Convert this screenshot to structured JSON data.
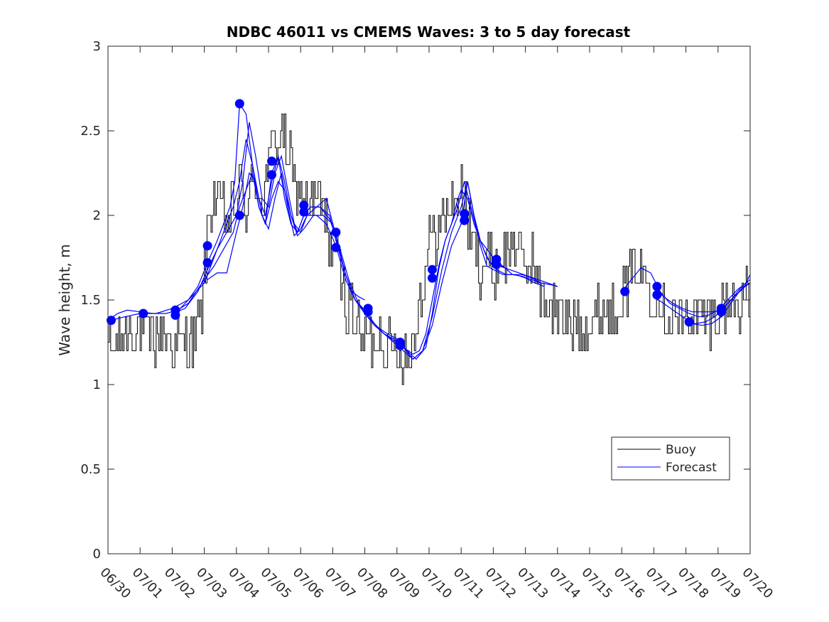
{
  "chart_data": {
    "type": "line",
    "title": "NDBC 46011 vs CMEMS Waves: 3 to 5 day forecast",
    "xlabel": "",
    "ylabel": "Wave height, m",
    "xlim": [
      0,
      20
    ],
    "ylim": [
      0,
      3
    ],
    "x_tick_labels": [
      "06/30",
      "07/01",
      "07/02",
      "07/03",
      "07/04",
      "07/05",
      "07/06",
      "07/07",
      "07/08",
      "07/09",
      "07/10",
      "07/11",
      "07/12",
      "07/13",
      "07/14",
      "07/15",
      "07/16",
      "07/17",
      "07/18",
      "07/19",
      "07/20"
    ],
    "y_ticks": [
      0,
      0.5,
      1,
      1.5,
      2,
      2.5,
      3
    ],
    "y_tick_labels": [
      "0",
      "0.5",
      "1",
      "1.5",
      "2",
      "2.5",
      "3"
    ],
    "grid": false,
    "legend": {
      "placement": "lower-right",
      "entries": [
        "Buoy",
        "Forecast"
      ]
    },
    "colors": {
      "buoy": "#000000",
      "forecast": "#0000ff"
    },
    "buoy_anchors": [
      [
        0.0,
        1.25
      ],
      [
        0.2,
        1.2
      ],
      [
        0.5,
        1.3
      ],
      [
        0.8,
        1.35
      ],
      [
        1.0,
        1.3
      ],
      [
        1.3,
        1.25
      ],
      [
        1.6,
        1.3
      ],
      [
        1.9,
        1.3
      ],
      [
        2.1,
        1.2
      ],
      [
        2.4,
        1.25
      ],
      [
        2.7,
        1.3
      ],
      [
        2.9,
        1.4
      ],
      [
        3.0,
        1.7
      ],
      [
        3.15,
        2.0
      ],
      [
        3.3,
        2.15
      ],
      [
        3.5,
        2.05
      ],
      [
        3.7,
        1.95
      ],
      [
        3.9,
        2.05
      ],
      [
        4.05,
        2.15
      ],
      [
        4.3,
        2.05
      ],
      [
        4.6,
        2.2
      ],
      [
        4.8,
        2.1
      ],
      [
        5.0,
        2.3
      ],
      [
        5.2,
        2.45
      ],
      [
        5.4,
        2.5
      ],
      [
        5.6,
        2.35
      ],
      [
        5.8,
        2.2
      ],
      [
        6.0,
        2.1
      ],
      [
        6.2,
        2.05
      ],
      [
        6.4,
        2.1
      ],
      [
        6.6,
        2.05
      ],
      [
        6.8,
        1.95
      ],
      [
        7.0,
        1.8
      ],
      [
        7.2,
        1.65
      ],
      [
        7.4,
        1.5
      ],
      [
        7.6,
        1.45
      ],
      [
        7.8,
        1.3
      ],
      [
        8.0,
        1.25
      ],
      [
        8.2,
        1.25
      ],
      [
        8.4,
        1.3
      ],
      [
        8.6,
        1.25
      ],
      [
        8.8,
        1.2
      ],
      [
        9.0,
        1.2
      ],
      [
        9.2,
        1.2
      ],
      [
        9.4,
        1.18
      ],
      [
        9.6,
        1.4
      ],
      [
        9.8,
        1.6
      ],
      [
        10.0,
        1.85
      ],
      [
        10.2,
        1.9
      ],
      [
        10.4,
        1.95
      ],
      [
        10.6,
        2.05
      ],
      [
        10.8,
        2.1
      ],
      [
        11.0,
        2.15
      ],
      [
        11.2,
        1.95
      ],
      [
        11.4,
        1.8
      ],
      [
        11.6,
        1.7
      ],
      [
        11.8,
        1.75
      ],
      [
        12.0,
        1.65
      ],
      [
        12.2,
        1.75
      ],
      [
        12.4,
        1.75
      ],
      [
        12.6,
        1.9
      ],
      [
        12.8,
        1.75
      ],
      [
        13.0,
        1.7
      ],
      [
        13.2,
        1.75
      ],
      [
        13.4,
        1.55
      ],
      [
        13.6,
        1.5
      ],
      [
        13.8,
        1.45
      ],
      [
        14.0,
        1.4
      ],
      [
        14.3,
        1.35
      ],
      [
        14.6,
        1.4
      ],
      [
        14.9,
        1.35
      ],
      [
        15.2,
        1.4
      ],
      [
        15.5,
        1.45
      ],
      [
        15.8,
        1.45
      ],
      [
        16.0,
        1.55
      ],
      [
        16.2,
        1.6
      ],
      [
        16.4,
        1.7
      ],
      [
        16.6,
        1.7
      ],
      [
        16.8,
        1.65
      ],
      [
        17.0,
        1.55
      ],
      [
        17.2,
        1.5
      ],
      [
        17.4,
        1.45
      ],
      [
        17.6,
        1.4
      ],
      [
        17.8,
        1.4
      ],
      [
        18.0,
        1.4
      ],
      [
        18.3,
        1.4
      ],
      [
        18.6,
        1.38
      ],
      [
        18.9,
        1.4
      ],
      [
        19.1,
        1.45
      ],
      [
        19.3,
        1.5
      ],
      [
        19.6,
        1.5
      ],
      [
        19.8,
        1.5
      ],
      [
        20.0,
        1.5
      ]
    ],
    "forecast_runs": [
      {
        "x": [
          0.0,
          0.3,
          0.6,
          1.0,
          1.4,
          1.8,
          2.2,
          2.5,
          2.8,
          3.1,
          3.4,
          3.6,
          3.8,
          3.95,
          4.1,
          4.3,
          4.5,
          4.7,
          4.9,
          5.1,
          5.3,
          5.5,
          5.7,
          5.9,
          6.1,
          6.3,
          6.6,
          6.9,
          7.1,
          7.4,
          7.7,
          8.0,
          8.3,
          8.6,
          8.9,
          9.2,
          9.5,
          9.7,
          9.9,
          10.1,
          10.3,
          10.5,
          10.7,
          10.9,
          11.0,
          11.2,
          11.4,
          11.6,
          11.8,
          12.0,
          12.3,
          12.6,
          12.9,
          13.2,
          13.5,
          13.8,
          14.0
        ],
        "y": [
          1.38,
          1.42,
          1.44,
          1.43,
          1.42,
          1.42,
          1.44,
          1.5,
          1.58,
          1.72,
          1.85,
          1.95,
          2.05,
          2.2,
          2.66,
          2.6,
          2.3,
          2.1,
          2.0,
          2.2,
          2.35,
          2.2,
          2.0,
          1.9,
          2.0,
          2.05,
          2.05,
          2.0,
          1.85,
          1.65,
          1.5,
          1.42,
          1.35,
          1.3,
          1.26,
          1.22,
          1.18,
          1.2,
          1.3,
          1.5,
          1.7,
          1.85,
          1.95,
          2.1,
          2.15,
          2.1,
          1.95,
          1.85,
          1.8,
          1.75,
          1.7,
          1.65,
          1.65,
          1.63,
          1.6,
          1.59,
          1.58
        ]
      },
      {
        "x": [
          0.1,
          0.5,
          1.0,
          1.5,
          2.0,
          2.5,
          3.0,
          3.3,
          3.6,
          3.9,
          4.1,
          4.3,
          4.5,
          4.7,
          4.9,
          5.1,
          5.3,
          5.5,
          5.7,
          5.9,
          6.1,
          6.3,
          6.6,
          6.9,
          7.2,
          7.5,
          7.8,
          8.1,
          8.4,
          8.7,
          9.0,
          9.3,
          9.6,
          9.9,
          10.1,
          10.3,
          10.5,
          10.7,
          10.9,
          11.1,
          11.3,
          11.5,
          11.7,
          11.9,
          12.1,
          12.4,
          12.7,
          13.0,
          13.3,
          13.6
        ],
        "y": [
          1.38,
          1.4,
          1.42,
          1.42,
          1.45,
          1.5,
          1.6,
          1.75,
          1.9,
          2.05,
          2.2,
          2.45,
          2.3,
          2.05,
          1.95,
          2.25,
          2.35,
          2.1,
          1.95,
          1.9,
          2.0,
          2.05,
          2.05,
          1.98,
          1.82,
          1.62,
          1.48,
          1.4,
          1.34,
          1.3,
          1.27,
          1.2,
          1.15,
          1.22,
          1.42,
          1.68,
          1.85,
          1.95,
          2.05,
          2.2,
          2.05,
          1.9,
          1.8,
          1.72,
          1.68,
          1.65,
          1.65,
          1.63,
          1.6,
          1.58
        ]
      },
      {
        "x": [
          2.0,
          2.4,
          2.8,
          3.1,
          3.4,
          3.7,
          4.0,
          4.2,
          4.4,
          4.6,
          4.8,
          5.0,
          5.2,
          5.4,
          5.6,
          5.8,
          6.0,
          6.2,
          6.5,
          6.8,
          7.1,
          7.4,
          7.7,
          8.0,
          8.3,
          8.6,
          8.9,
          9.2,
          9.5,
          9.8,
          10.1,
          10.4,
          10.7,
          11.0,
          11.2,
          11.4,
          11.6,
          11.8,
          12.0,
          12.3,
          12.6,
          12.9,
          13.2,
          13.5
        ],
        "y": [
          1.42,
          1.45,
          1.55,
          1.68,
          1.8,
          1.9,
          2.0,
          2.2,
          2.55,
          2.35,
          2.1,
          2.05,
          2.25,
          2.35,
          2.15,
          1.95,
          1.9,
          2.0,
          2.05,
          2.1,
          1.88,
          1.65,
          1.5,
          1.44,
          1.36,
          1.3,
          1.27,
          1.22,
          1.15,
          1.2,
          1.4,
          1.68,
          1.9,
          2.05,
          2.2,
          2.0,
          1.82,
          1.7,
          1.68,
          1.65,
          1.65,
          1.64,
          1.62,
          1.6
        ]
      },
      {
        "x": [
          2.0,
          2.5,
          3.0,
          3.3,
          3.6,
          3.9,
          4.1,
          4.3,
          4.5,
          4.7,
          4.9,
          5.1,
          5.3,
          5.5,
          5.7,
          5.9,
          6.1,
          6.4,
          6.7,
          7.0,
          7.2,
          7.4,
          7.6,
          7.8,
          8.0
        ],
        "y": [
          1.42,
          1.48,
          1.62,
          1.7,
          1.8,
          1.9,
          2.05,
          2.15,
          2.25,
          2.05,
          1.95,
          2.1,
          2.2,
          2.15,
          2.0,
          1.88,
          1.92,
          2.0,
          2.0,
          1.95,
          1.8,
          1.65,
          1.55,
          1.52,
          1.5
        ]
      },
      {
        "x": [
          3.1,
          3.4,
          3.7,
          4.0,
          4.2,
          4.4,
          4.6,
          4.8,
          5.0,
          5.2,
          5.4,
          5.6,
          5.8,
          6.0,
          6.2,
          6.5,
          6.8,
          7.1,
          7.4,
          7.7,
          8.0,
          8.3,
          8.6,
          8.9,
          9.2,
          9.5,
          9.8,
          10.1,
          10.4,
          10.7,
          11.0,
          11.2,
          11.4,
          11.6,
          11.8,
          12.0,
          12.2,
          12.5,
          12.8,
          13.1,
          13.4,
          13.7,
          14.0
        ],
        "y": [
          1.62,
          1.66,
          1.66,
          1.9,
          2.05,
          2.25,
          2.2,
          2.0,
          1.92,
          2.1,
          2.25,
          2.05,
          1.88,
          1.92,
          2.0,
          2.0,
          1.95,
          1.82,
          1.62,
          1.5,
          1.42,
          1.35,
          1.3,
          1.25,
          1.2,
          1.15,
          1.2,
          1.35,
          1.6,
          1.82,
          1.95,
          2.2,
          2.0,
          1.85,
          1.75,
          1.7,
          1.7,
          1.68,
          1.66,
          1.64,
          1.62,
          1.6,
          1.58
        ]
      },
      {
        "x": [
          16.0,
          16.3,
          16.6,
          16.9,
          17.2,
          17.5,
          17.8,
          18.1,
          18.4,
          18.7,
          19.0,
          19.3,
          19.6,
          20.0
        ],
        "y": [
          1.55,
          1.62,
          1.69,
          1.66,
          1.55,
          1.48,
          1.45,
          1.42,
          1.4,
          1.41,
          1.44,
          1.5,
          1.56,
          1.62
        ]
      },
      {
        "x": [
          17.0,
          17.3,
          17.6,
          17.9,
          18.2,
          18.5,
          18.8,
          19.1,
          19.4,
          19.7,
          20.0
        ],
        "y": [
          1.58,
          1.52,
          1.48,
          1.45,
          1.43,
          1.43,
          1.43,
          1.44,
          1.5,
          1.57,
          1.6
        ]
      },
      {
        "x": [
          17.0,
          17.3,
          17.6,
          17.9,
          18.2,
          18.5,
          18.8,
          19.1,
          19.4,
          19.7,
          20.0
        ],
        "y": [
          1.52,
          1.48,
          1.44,
          1.4,
          1.36,
          1.35,
          1.36,
          1.4,
          1.48,
          1.56,
          1.6
        ]
      },
      {
        "x": [
          18.0,
          18.3,
          18.6,
          18.9,
          19.2,
          19.5,
          19.8,
          20.0
        ],
        "y": [
          1.37,
          1.36,
          1.37,
          1.4,
          1.46,
          1.52,
          1.57,
          1.65
        ]
      }
    ],
    "forecast_markers": [
      [
        0.1,
        1.38
      ],
      [
        1.1,
        1.42
      ],
      [
        2.1,
        1.44
      ],
      [
        2.1,
        1.41
      ],
      [
        3.1,
        1.82
      ],
      [
        3.1,
        1.72
      ],
      [
        4.1,
        2.66
      ],
      [
        4.1,
        2.0
      ],
      [
        5.1,
        2.32
      ],
      [
        5.1,
        2.24
      ],
      [
        6.1,
        2.06
      ],
      [
        6.1,
        2.02
      ],
      [
        7.1,
        1.9
      ],
      [
        7.1,
        1.81
      ],
      [
        8.1,
        1.45
      ],
      [
        8.1,
        1.43
      ],
      [
        9.1,
        1.25
      ],
      [
        9.1,
        1.23
      ],
      [
        10.1,
        1.68
      ],
      [
        10.1,
        1.63
      ],
      [
        11.1,
        2.01
      ],
      [
        11.1,
        1.97
      ],
      [
        12.1,
        1.74
      ],
      [
        12.1,
        1.71
      ],
      [
        16.1,
        1.55
      ],
      [
        17.1,
        1.58
      ],
      [
        17.1,
        1.53
      ],
      [
        18.1,
        1.37
      ],
      [
        19.1,
        1.45
      ],
      [
        19.1,
        1.43
      ]
    ]
  }
}
